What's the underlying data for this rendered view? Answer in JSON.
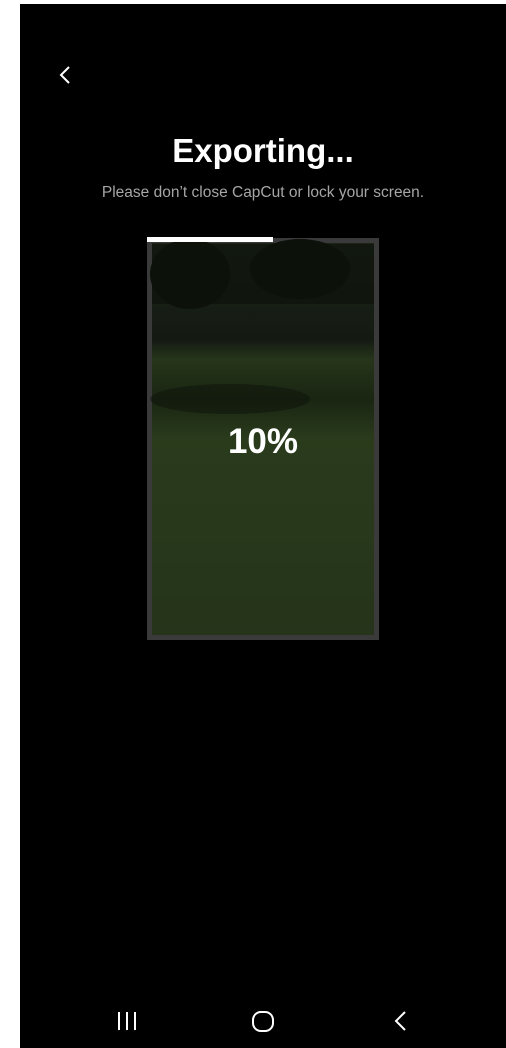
{
  "header": {
    "title": "Exporting...",
    "subtitle": "Please don’t close CapCut or lock your screen."
  },
  "preview": {
    "progress_label": "10%"
  }
}
